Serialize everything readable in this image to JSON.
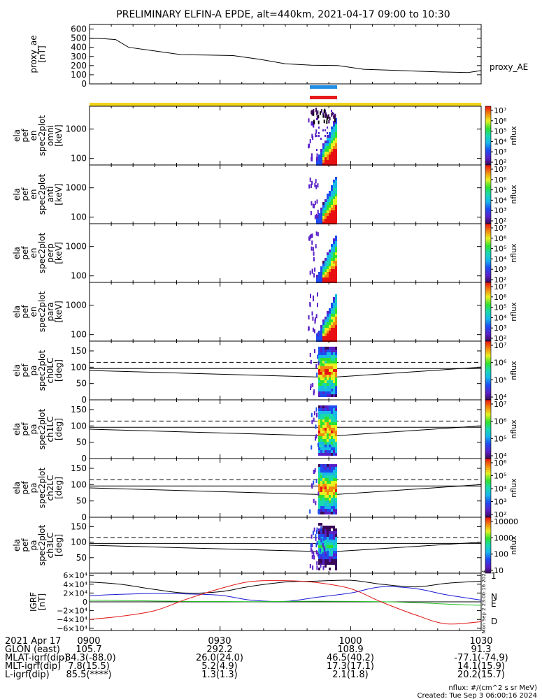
{
  "title": "PRELIMINARY ELFIN-A EPDE, alt=440km, 2021-04-17 09:00 to 10:30",
  "colors": {
    "state_bar": "#f2d31b",
    "bar_blue": "#1f8fe6",
    "bar_red": "#e51a1a",
    "n_color": "#1a1ad6",
    "e_color": "#22c422",
    "d_color": "#e01515"
  },
  "chart_data": [
    {
      "type": "line",
      "name": "proxy_ae",
      "ylabel": [
        "proxy_ae",
        "[nT]"
      ],
      "right_label": "proxy_AE",
      "yticks": [
        0,
        100,
        200,
        300,
        400,
        500,
        600
      ],
      "ylim": [
        0,
        650
      ],
      "x": [
        "09:00",
        "09:03",
        "09:06",
        "09:09",
        "09:15",
        "09:21",
        "09:27",
        "09:33",
        "09:39",
        "09:45",
        "09:51",
        "09:57",
        "10:03",
        "10:09",
        "10:15",
        "10:21",
        "10:27",
        "10:30"
      ],
      "values": [
        500,
        495,
        485,
        400,
        360,
        320,
        315,
        310,
        270,
        220,
        205,
        200,
        160,
        150,
        140,
        130,
        125,
        145
      ]
    },
    {
      "type": "heatmap",
      "ylabel": [
        "ela",
        "pef",
        "en",
        "spec2plot",
        "omni",
        "[keV]"
      ],
      "yticks": [
        "100",
        "1000"
      ],
      "ylim_keV": [
        60,
        6000
      ],
      "yscale": "log",
      "colorbar_label": "nflux",
      "colorbar_ticks": [
        "10²",
        "10³",
        "10⁴",
        "10⁵",
        "10⁶",
        "10⁷"
      ]
    },
    {
      "type": "heatmap",
      "ylabel": [
        "ela",
        "pef",
        "en",
        "spec2plot",
        "anti",
        "[keV]"
      ],
      "yticks": [
        "100",
        "1000"
      ],
      "ylim_keV": [
        60,
        6000
      ],
      "yscale": "log",
      "colorbar_label": "nflux",
      "colorbar_ticks": [
        "10²",
        "10³",
        "10⁴",
        "10⁵",
        "10⁶",
        "10⁷"
      ]
    },
    {
      "type": "heatmap",
      "ylabel": [
        "ela",
        "pef",
        "en",
        "spec2plot",
        "perp",
        "[keV]"
      ],
      "yticks": [
        "100",
        "1000"
      ],
      "ylim_keV": [
        60,
        6000
      ],
      "yscale": "log",
      "colorbar_label": "nflux",
      "colorbar_ticks": [
        "10²",
        "10³",
        "10⁴",
        "10⁵",
        "10⁶",
        "10⁷"
      ]
    },
    {
      "type": "heatmap",
      "ylabel": [
        "ela",
        "pef",
        "en",
        "spec2plot",
        "para",
        "[keV]"
      ],
      "yticks": [
        "100",
        "1000"
      ],
      "ylim_keV": [
        60,
        6000
      ],
      "yscale": "log",
      "colorbar_label": "nflux",
      "colorbar_ticks": [
        "10²",
        "10³",
        "10⁴",
        "10⁵",
        "10⁶",
        "10⁷"
      ]
    },
    {
      "type": "heatmap",
      "ylabel": [
        "ela",
        "pef",
        "pa",
        "spec2plot",
        "ch0LC",
        "[deg]"
      ],
      "yticks": [
        "0",
        "50",
        "100",
        "150"
      ],
      "ylim": [
        0,
        180
      ],
      "colorbar_label": "nflux",
      "colorbar_ticks": [
        "10⁴",
        "10⁵",
        "10⁶",
        "10⁷"
      ]
    },
    {
      "type": "heatmap",
      "ylabel": [
        "ela",
        "pef",
        "pa",
        "spec2plot",
        "ch1LC",
        "[deg]"
      ],
      "yticks": [
        "0",
        "50",
        "100",
        "150"
      ],
      "ylim": [
        0,
        180
      ],
      "colorbar_label": "nflux",
      "colorbar_ticks": [
        "10⁴",
        "10⁵",
        "10⁶",
        "10⁷"
      ]
    },
    {
      "type": "heatmap",
      "ylabel": [
        "ela",
        "pef",
        "pa",
        "spec2plot",
        "ch2LC",
        "[deg]"
      ],
      "yticks": [
        "0",
        "50",
        "100",
        "150"
      ],
      "ylim": [
        0,
        180
      ],
      "colorbar_label": "nflux",
      "colorbar_ticks": [
        "10²",
        "10³",
        "10⁴",
        "10⁵",
        "10⁶"
      ]
    },
    {
      "type": "heatmap",
      "ylabel": [
        "ela",
        "pef",
        "pa",
        "spec2plot",
        "ch3LC",
        "[deg]"
      ],
      "yticks": [
        "50",
        "100",
        "150"
      ],
      "ylim": [
        0,
        180
      ],
      "colorbar_label": "nflux",
      "colorbar_ticks": [
        "10",
        "100",
        "1000",
        "10000"
      ]
    },
    {
      "type": "line",
      "name": "IGRF",
      "ylabel": [
        "IGRF",
        "[nT]"
      ],
      "yticks": [
        "−6×10⁴",
        "−4×10⁴",
        "−2×10⁴",
        "0",
        "2×10⁴",
        "4×10⁴",
        "6×10⁴"
      ],
      "ylim": [
        -65000,
        65000
      ],
      "series": [
        {
          "name": "1",
          "color": "#000000",
          "values": [
            45000,
            40000,
            28000,
            20000,
            23000,
            35000,
            45000,
            47000,
            49000,
            40000,
            34000,
            42000,
            47000
          ]
        },
        {
          "name": "N",
          "color": "#1a1ad6",
          "values": [
            14000,
            17000,
            19000,
            18000,
            15000,
            4000,
            1000,
            10000,
            20000,
            34000,
            30000,
            16000,
            4000
          ]
        },
        {
          "name": "E",
          "color": "#22c422",
          "values": [
            4000,
            3000,
            2000,
            1000,
            800,
            500,
            1000,
            1500,
            1000,
            500,
            -2000,
            -5000,
            -8000
          ]
        },
        {
          "name": "D",
          "color": "#e01515",
          "values": [
            -40000,
            -33000,
            -20000,
            5000,
            30000,
            46000,
            48000,
            44000,
            30000,
            0,
            -30000,
            -50000,
            -45000
          ]
        }
      ],
      "x": [
        "09:00",
        "09:07",
        "09:15",
        "09:22",
        "09:30",
        "09:37",
        "09:45",
        "09:52",
        "10:00",
        "10:07",
        "10:15",
        "10:22",
        "10:30"
      ]
    }
  ],
  "xticks": {
    "date": "2021 Apr 17",
    "labels": [
      "0900",
      "0930",
      "1000",
      "1030"
    ]
  },
  "ephemeris": [
    {
      "label": "GLON (east)",
      "values": [
        "105.7",
        "292.2",
        "108.9",
        "91.3"
      ]
    },
    {
      "label": "MLAT-igrf(dip)",
      "values": [
        "-84.3(-88.0)",
        "26.0(24.0)",
        "46.5(40.2)",
        "-77.1(-74.9)"
      ]
    },
    {
      "label": "MLT-igrf(dip)",
      "values": [
        "7.8(15.5)",
        "5.2(4.9)",
        "17.3(17.1)",
        "14.1(15.9)"
      ]
    },
    {
      "label": "L-igrf(dip)",
      "values": [
        "85.5(****)",
        "1.3(1.3)",
        "2.1(1.8)",
        "20.2(15.7)"
      ]
    }
  ],
  "igrf_side_stamp": "Mon Sep  2 23:00:16 2024",
  "footer": {
    "units": "nflux: #/(cm^2 s sr MeV)",
    "created": "Created: Tue Sep  3 06:00:16 2024"
  }
}
